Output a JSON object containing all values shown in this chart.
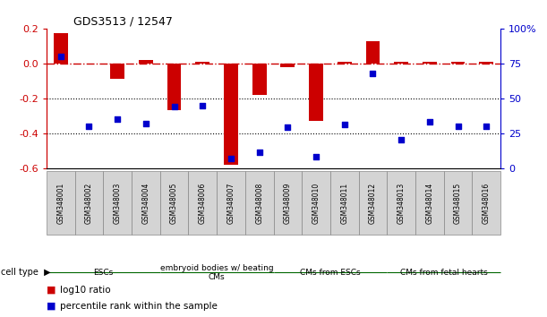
{
  "title": "GDS3513 / 12547",
  "samples": [
    "GSM348001",
    "GSM348002",
    "GSM348003",
    "GSM348004",
    "GSM348005",
    "GSM348006",
    "GSM348007",
    "GSM348008",
    "GSM348009",
    "GSM348010",
    "GSM348011",
    "GSM348012",
    "GSM348013",
    "GSM348014",
    "GSM348015",
    "GSM348016"
  ],
  "log10_ratio": [
    0.175,
    0.0,
    -0.09,
    0.02,
    -0.27,
    0.01,
    -0.58,
    -0.18,
    -0.02,
    -0.33,
    0.01,
    0.125,
    0.01,
    0.01,
    0.01,
    0.01
  ],
  "percentile_rank": [
    80,
    30,
    35,
    32,
    44,
    45,
    7,
    11,
    29,
    8,
    31,
    68,
    20,
    33,
    30,
    30
  ],
  "ylim_left": [
    -0.6,
    0.2
  ],
  "ylim_right": [
    0,
    100
  ],
  "cell_type_groups": [
    {
      "label": "ESCs",
      "start": 0,
      "end": 3,
      "color": "#ccffcc"
    },
    {
      "label": "embryoid bodies w/ beating\nCMs",
      "start": 4,
      "end": 7,
      "color": "#99ee99"
    },
    {
      "label": "CMs from ESCs",
      "start": 8,
      "end": 11,
      "color": "#66dd66"
    },
    {
      "label": "CMs from fetal hearts",
      "start": 12,
      "end": 15,
      "color": "#33cc33"
    }
  ],
  "bar_color": "#cc0000",
  "dot_color": "#0000cc",
  "ref_line_color": "#cc0000",
  "grid_color": "#000000",
  "bg_color": "#ffffff",
  "left_axis_color": "#cc0000",
  "right_axis_color": "#0000cc",
  "yticks_left": [
    -0.6,
    -0.4,
    -0.2,
    0.0,
    0.2
  ],
  "yticks_right": [
    0,
    25,
    50,
    75,
    100
  ],
  "legend_items": [
    {
      "label": "log10 ratio",
      "color": "#cc0000"
    },
    {
      "label": "percentile rank within the sample",
      "color": "#0000cc"
    }
  ]
}
